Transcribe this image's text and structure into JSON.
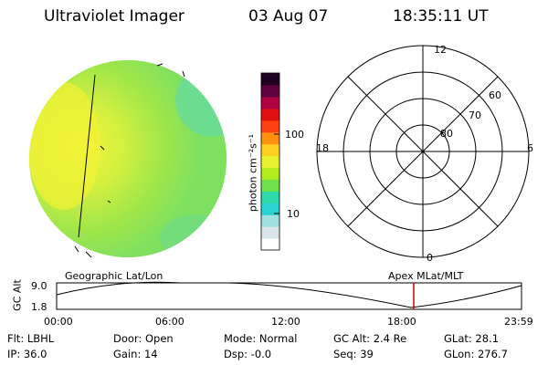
{
  "header": {
    "title": "Ultraviolet Imager",
    "date": "03 Aug 07",
    "time": "18:35:11 UT"
  },
  "colorbar": {
    "unit_label": "photon cm⁻²s⁻¹",
    "ticks": [
      "100",
      "10"
    ],
    "colors": [
      "#ffffff",
      "#d8e6ea",
      "#9ee0e0",
      "#2ad2d2",
      "#2fd8a8",
      "#6ee24a",
      "#b0ec20",
      "#e8f030",
      "#ffd020",
      "#ff9010",
      "#ff4010",
      "#e01010",
      "#b00040",
      "#600040",
      "#200020"
    ]
  },
  "polar_plot": {
    "mlt_labels": {
      "top": "12",
      "right": "6",
      "bottom": "0",
      "left": "18"
    },
    "lat_labels": [
      "80",
      "70",
      "60"
    ]
  },
  "timeline": {
    "left_title": "Geographic Lat/Lon",
    "right_title": "Apex MLat/MLT",
    "y_label": "GC Alt",
    "y_ticks": [
      "9.0",
      "1.8"
    ],
    "x_ticks": [
      "00:00",
      "06:00",
      "12:00",
      "18:00",
      "23:59"
    ],
    "current_marker_time": "18:35",
    "marker_color": "#cc0000"
  },
  "info": {
    "flt": "Flt: LBHL",
    "ip": "IP: 36.0",
    "door": "Door: Open",
    "gain": "Gain: 14",
    "mode": "Mode: Normal",
    "dsp": "Dsp:    -0.0",
    "gc_alt": "GC Alt: 2.4 Re",
    "seq": "Seq: 39",
    "glat": "GLat:  28.1",
    "glon": "GLon: 276.7"
  }
}
